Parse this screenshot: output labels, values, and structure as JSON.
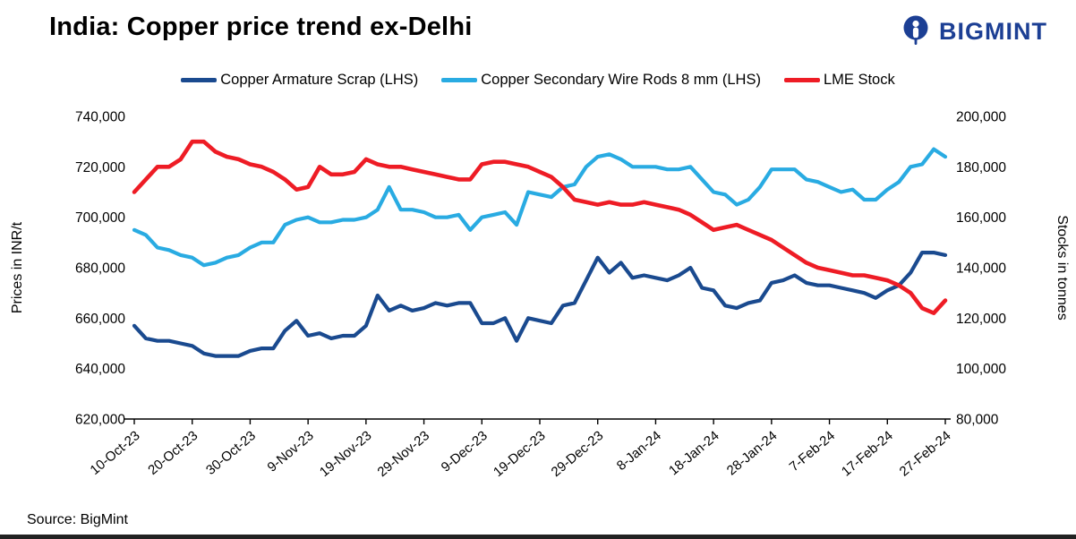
{
  "page": {
    "title": "India: Copper price trend ex-Delhi",
    "source": "Source: BigMint",
    "brand": {
      "name": "BIGMINT",
      "color": "#1c3f94"
    }
  },
  "chart_data": {
    "type": "line",
    "title": "India: Copper price trend ex-Delhi",
    "legend_position": "top",
    "grid": false,
    "x_tick_labels": [
      "10-Oct-23",
      "20-Oct-23",
      "30-Oct-23",
      "9-Nov-23",
      "19-Nov-23",
      "29-Nov-23",
      "9-Dec-23",
      "19-Dec-23",
      "29-Dec-23",
      "8-Jan-24",
      "18-Jan-24",
      "28-Jan-24",
      "7-Feb-24",
      "17-Feb-24",
      "27-Feb-24"
    ],
    "left_axis": {
      "label": "Prices in INR/t",
      "min": 620000,
      "max": 740000,
      "step": 20000
    },
    "right_axis": {
      "label": "Stocks in tonnes",
      "min": 80000,
      "max": 200000,
      "step": 20000
    },
    "series": [
      {
        "name": "Copper Armature Scrap (LHS)",
        "color": "#1a4a8f",
        "axis": "left",
        "values": [
          657000,
          652000,
          651000,
          651000,
          650000,
          649000,
          646000,
          645000,
          645000,
          645000,
          647000,
          648000,
          648000,
          655000,
          659000,
          653000,
          654000,
          652000,
          653000,
          653000,
          657000,
          669000,
          663000,
          665000,
          663000,
          664000,
          666000,
          665000,
          666000,
          666000,
          658000,
          658000,
          660000,
          651000,
          660000,
          659000,
          658000,
          665000,
          666000,
          675000,
          684000,
          678000,
          682000,
          676000,
          677000,
          676000,
          675000,
          677000,
          680000,
          672000,
          671000,
          665000,
          664000,
          666000,
          667000,
          674000,
          675000,
          677000,
          674000,
          673000,
          673000,
          672000,
          671000,
          670000,
          668000,
          671000,
          673000,
          678000,
          686000,
          686000,
          685000
        ]
      },
      {
        "name": "Copper Secondary Wire Rods 8 mm (LHS)",
        "color": "#29abe2",
        "axis": "left",
        "values": [
          695000,
          693000,
          688000,
          687000,
          685000,
          684000,
          681000,
          682000,
          684000,
          685000,
          688000,
          690000,
          690000,
          697000,
          699000,
          700000,
          698000,
          698000,
          699000,
          699000,
          700000,
          703000,
          712000,
          703000,
          703000,
          702000,
          700000,
          700000,
          701000,
          695000,
          700000,
          701000,
          702000,
          697000,
          710000,
          709000,
          708000,
          712000,
          713000,
          720000,
          724000,
          725000,
          723000,
          720000,
          720000,
          720000,
          719000,
          719000,
          720000,
          715000,
          710000,
          709000,
          705000,
          707000,
          712000,
          719000,
          719000,
          719000,
          715000,
          714000,
          712000,
          710000,
          711000,
          707000,
          707000,
          711000,
          714000,
          720000,
          721000,
          727000,
          724000
        ]
      },
      {
        "name": "LME Stock",
        "color": "#ee1c25",
        "axis": "right",
        "values": [
          170000,
          175000,
          180000,
          180000,
          183000,
          190000,
          190000,
          186000,
          184000,
          183000,
          181000,
          180000,
          178000,
          175000,
          171000,
          172000,
          180000,
          177000,
          177000,
          178000,
          183000,
          181000,
          180000,
          180000,
          179000,
          178000,
          177000,
          176000,
          175000,
          175000,
          181000,
          182000,
          182000,
          181000,
          180000,
          178000,
          176000,
          172000,
          167000,
          166000,
          165000,
          166000,
          165000,
          165000,
          166000,
          165000,
          164000,
          163000,
          161000,
          158000,
          155000,
          156000,
          157000,
          155000,
          153000,
          151000,
          148000,
          145000,
          142000,
          140000,
          139000,
          138000,
          137000,
          137000,
          136000,
          135000,
          133000,
          130000,
          124000,
          122000,
          127000
        ]
      }
    ]
  }
}
